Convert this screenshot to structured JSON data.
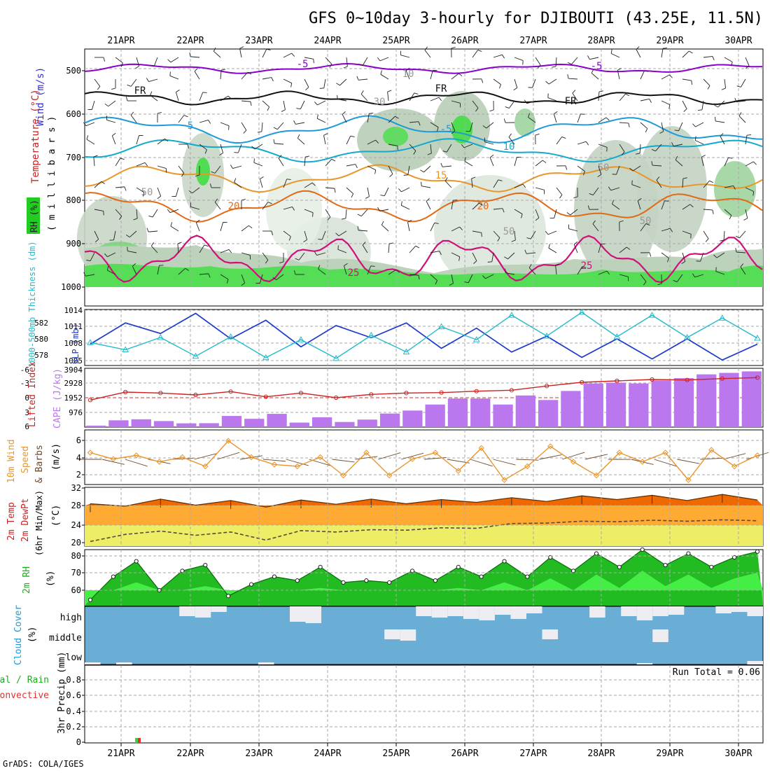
{
  "header": {
    "title": "GFS 0~10day 3-hourly for DJIBOUTI (43.25E, 11.5N)",
    "credit": "GrADS: COLA/IGES",
    "run_total_label": "Run Total = 0.06"
  },
  "dates": [
    "21APR",
    "22APR",
    "23APR",
    "24APR",
    "25APR",
    "26APR",
    "27APR",
    "28APR",
    "29APR",
    "30APR"
  ],
  "panels": {
    "profile": {
      "ylabel_lines": [
        "Wind (m/s)",
        "Temperature (°C)",
        "RH (%)",
        "(m i l l i b a r s)"
      ],
      "wind_label": "Wind (m/s)",
      "temp_label": "Temperature (°C)",
      "rh_label": "RH (%)",
      "mb_label": "( m i l l i b a r s )",
      "yticks": [
        "500",
        "600",
        "700",
        "800",
        "900",
        "1000"
      ],
      "contour_labels": [
        "-5",
        "-5",
        "FR",
        "FR",
        "FR",
        "5",
        "-5",
        "10",
        "15",
        "20",
        "20",
        "25",
        "25",
        "10",
        "30",
        "50",
        "50",
        "50",
        "50"
      ]
    },
    "slp": {
      "thickness_label": "1000-500mb Thickness (dm)",
      "slp_label": "SLP (mb)",
      "left_ticks": [
        "582",
        "580",
        "578"
      ],
      "right_ticks": [
        "1014",
        "1011",
        "1008",
        "1005"
      ]
    },
    "li": {
      "li_label": "Lifted Index",
      "cape_label": "CAPE (J/kg)",
      "left_ticks": [
        "-6",
        "-3",
        "0",
        "3",
        "6"
      ],
      "right_ticks": [
        "3904",
        "2928",
        "1952",
        "976"
      ]
    },
    "wind10": {
      "label1": "10m Wind",
      "label2": "Speed",
      "label3": "& Barbs",
      "unit": "(m/s)",
      "yticks": [
        "6",
        "4",
        "2"
      ]
    },
    "temp2m": {
      "label1": "2m Temp",
      "label2": "2m DewPt",
      "label3": "(6hr Min/Max)",
      "unit": "(°C)",
      "yticks": [
        "32",
        "28",
        "24",
        "20"
      ]
    },
    "rh2m": {
      "label": "2m RH",
      "unit": "(%)",
      "yticks": [
        "80",
        "70",
        "60"
      ]
    },
    "cloud": {
      "label": "Cloud Cover",
      "unit": "(%)",
      "levels": [
        "high",
        "middle",
        "low"
      ]
    },
    "precip": {
      "label1": "3hr Precip (mm)",
      "label2": "Total / Rain",
      "label3": "Convective",
      "yticks": [
        "0.8",
        "0.6",
        "0.4",
        "0.2",
        "0"
      ]
    }
  },
  "colors": {
    "temp_line": "#cc2222",
    "wind_line": "#3333cc",
    "rh_green": "#22cc22",
    "minus5": "#8800cc",
    "freezing": "#111111",
    "c5": "#1e9ad6",
    "c10": "#11aacc",
    "c15": "#e8962a",
    "c20": "#e06a18",
    "c25": "#d0107a",
    "slp": "#1a3acc",
    "thickness": "#22bbcc",
    "lifted_index": "#cc2222",
    "cape": "#bb77ee",
    "wind_speed": "#e8962a",
    "wind_barb": "#6b4a2a",
    "temp_fill": "#ee6a00",
    "dew_fill": "#ffaa33",
    "low_fill": "#eeee66",
    "rh_dark": "#22bb22",
    "rh_light": "#44ee44",
    "cloud_blue": "#6aaed6",
    "cloud_white": "#eeeef2",
    "precip_total": "#44cc44",
    "precip_conv": "#dd3333"
  },
  "chart_data": [
    {
      "type": "line",
      "name": "Lifted Index",
      "x": [
        "21APR 00",
        "21APR 12",
        "22APR 00",
        "22APR 12",
        "23APR 00",
        "23APR 12",
        "24APR 00",
        "24APR 12",
        "25APR 00",
        "25APR 12",
        "26APR 00",
        "26APR 12",
        "27APR 00",
        "27APR 12",
        "28APR 00",
        "28APR 12",
        "29APR 00",
        "29APR 12",
        "30APR 00",
        "30APR 12"
      ],
      "values": [
        0.5,
        -1.2,
        -1.0,
        -0.6,
        -1.3,
        -0.2,
        -1.0,
        0.0,
        -0.7,
        -1.0,
        -1.1,
        -1.4,
        -1.6,
        -2.5,
        -3.3,
        -3.6,
        -3.9,
        -3.8,
        -4.1,
        -4.3
      ],
      "ylim": [
        6,
        -6
      ]
    },
    {
      "type": "bar",
      "name": "CAPE",
      "values": [
        100,
        450,
        520,
        400,
        250,
        260,
        740,
        550,
        880,
        300,
        650,
        340,
        500,
        900,
        1100,
        1500,
        1900,
        1900,
        1500,
        2100,
        1800,
        2400,
        2900,
        2950,
        2900,
        3100,
        3250,
        3500,
        3600,
        3700
      ],
      "ylim": [
        0,
        3904
      ]
    },
    {
      "type": "line",
      "name": "SLP",
      "values": [
        1008,
        1012,
        1010,
        1013.8,
        1009,
        1012.5,
        1007.5,
        1011.5,
        1009.2,
        1012,
        1007.2,
        1011,
        1006.5,
        1009.5,
        1005.5,
        1009,
        1005.2,
        1009,
        1005,
        1008
      ],
      "ylim": [
        1004.5,
        1014
      ]
    },
    {
      "type": "line",
      "name": "Thickness",
      "values": [
        579.8,
        578.8,
        580.5,
        577.9,
        580.6,
        577.7,
        580.2,
        577.6,
        580.8,
        578.5,
        582,
        580.2,
        583.6,
        580.7,
        584,
        580.6,
        583.6,
        580.5,
        583.2,
        580.4
      ],
      "ylim": [
        577,
        584
      ]
    },
    {
      "type": "line",
      "name": "10m Wind Speed",
      "values": [
        4.5,
        3.8,
        4.2,
        3.5,
        4.0,
        3.0,
        5.8,
        4.0,
        3.2,
        3.0,
        4.0,
        2.0,
        4.5,
        2.0,
        3.8,
        4.5,
        2.5,
        5.0,
        1.5,
        3.0,
        5.2,
        3.5,
        2.0,
        4.5,
        3.5,
        4.5,
        1.5,
        4.8,
        3.0,
        4.2
      ],
      "ylim": [
        1,
        7
      ]
    },
    {
      "type": "area",
      "name": "2m Temp",
      "values": [
        28.5,
        28,
        29.5,
        28.2,
        29.2,
        27.8,
        29.3,
        28.4,
        29.5,
        28.5,
        29.4,
        28.8,
        29.8,
        29,
        30.2,
        29.4,
        30.3,
        29.2,
        30.5,
        29.3
      ],
      "ylim": [
        19.5,
        32
      ]
    },
    {
      "type": "line",
      "name": "2m DewPt",
      "values": [
        20.5,
        22,
        22.7,
        21.8,
        22.5,
        20.8,
        22.8,
        22.5,
        23,
        22.9,
        23.4,
        23.3,
        24.3,
        24.4,
        24.8,
        24.7,
        25,
        24.8,
        25.1,
        24.9
      ],
      "ylim": [
        19.5,
        32
      ]
    },
    {
      "type": "area",
      "name": "2m RH",
      "values": [
        58,
        70,
        78,
        63,
        73,
        76,
        60,
        66,
        70,
        68,
        75,
        67,
        68,
        67,
        73,
        68,
        75,
        70,
        78,
        70,
        80,
        73,
        82,
        75,
        84,
        76,
        82,
        75,
        80,
        83
      ],
      "ylim": [
        55,
        84
      ]
    },
    {
      "type": "bar",
      "name": "3hr Precip",
      "x": [
        "21APR 06"
      ],
      "values": [
        0.06
      ],
      "ylim": [
        0,
        0.95
      ]
    }
  ]
}
